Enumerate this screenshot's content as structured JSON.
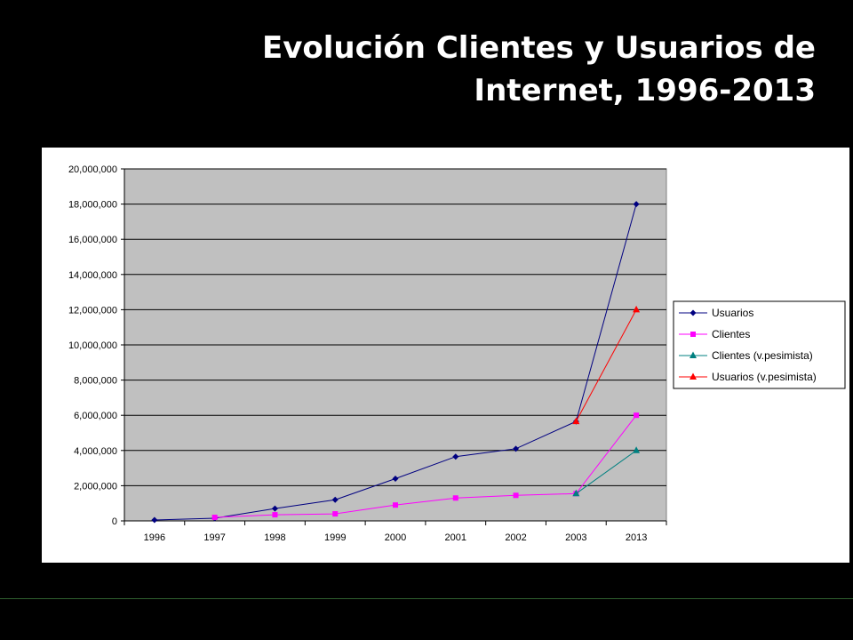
{
  "slide": {
    "title_line1": "Evolución Clientes y Usuarios de",
    "title_line2": "Internet, 1996-2013"
  },
  "chart_data": {
    "type": "line",
    "title": "",
    "xlabel": "",
    "ylabel": "",
    "categories": [
      "1996",
      "1997",
      "1998",
      "1999",
      "2000",
      "2001",
      "2002",
      "2003",
      "2013"
    ],
    "ylim": [
      0,
      20000000
    ],
    "yticks": [
      0,
      2000000,
      4000000,
      6000000,
      8000000,
      10000000,
      12000000,
      14000000,
      16000000,
      18000000,
      20000000
    ],
    "ytick_labels": [
      "0",
      "2,000,000",
      "4,000,000",
      "6,000,000",
      "8,000,000",
      "10,000,000",
      "12,000,000",
      "14,000,000",
      "16,000,000",
      "18,000,000",
      "20,000,000"
    ],
    "grid": true,
    "legend_position": "right",
    "plot_background": "#c0c0c0",
    "series": [
      {
        "name": "Usuarios",
        "color": "#000080",
        "marker": "diamond",
        "values": [
          50000,
          150000,
          700000,
          1200000,
          2400000,
          3650000,
          4100000,
          5650000,
          18000000
        ]
      },
      {
        "name": "Clientes",
        "color": "#ff00ff",
        "marker": "square",
        "values": [
          null,
          200000,
          350000,
          400000,
          900000,
          1300000,
          1450000,
          1550000,
          6000000
        ]
      },
      {
        "name": "Clientes (v.pesimista)",
        "color": "#008080",
        "marker": "triangle",
        "values": [
          null,
          null,
          null,
          null,
          null,
          null,
          null,
          1550000,
          4000000
        ]
      },
      {
        "name": "Usuarios (v.pesimista)",
        "color": "#ff0000",
        "marker": "triangle",
        "values": [
          null,
          null,
          null,
          null,
          null,
          null,
          null,
          5650000,
          12000000
        ]
      }
    ]
  }
}
